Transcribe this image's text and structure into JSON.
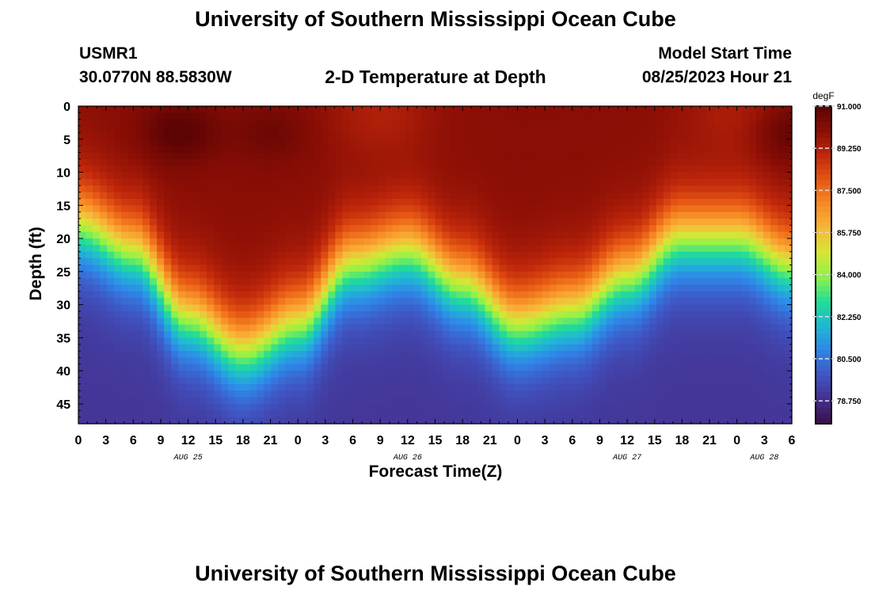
{
  "header": {
    "title": "University of Southern Mississippi Ocean Cube",
    "station": "USMR1",
    "coords": "30.0770N  88.5830W",
    "subtitle": "2-D Temperature at Depth",
    "model_start_label": "Model Start Time",
    "model_start_value": "08/25/2023 Hour 21",
    "footer_title": "University of Southern Mississippi Ocean Cube"
  },
  "chart_data": {
    "type": "heatmap",
    "title": "2-D Temperature at Depth",
    "xlabel": "Forecast Time(Z)",
    "ylabel": "Depth (ft)",
    "x_tick_labels": [
      "0",
      "3",
      "6",
      "9",
      "12",
      "15",
      "18",
      "21",
      "0",
      "3",
      "6",
      "9",
      "12",
      "15",
      "18",
      "21",
      "0",
      "3",
      "6",
      "9",
      "12",
      "15",
      "18",
      "21",
      "0",
      "3",
      "6"
    ],
    "day_labels": [
      {
        "label": "AUG 25",
        "tick_index": 4
      },
      {
        "label": "AUG 26",
        "tick_index": 12
      },
      {
        "label": "AUG 27",
        "tick_index": 20
      },
      {
        "label": "AUG 28",
        "tick_index": 25
      }
    ],
    "y_ticks": [
      0,
      5,
      10,
      15,
      20,
      25,
      30,
      35,
      40,
      45
    ],
    "y_range": [
      0,
      48
    ],
    "x_range_hours": [
      0,
      78
    ],
    "colorbar": {
      "units": "degF",
      "min": 77.8,
      "max": 91.0,
      "ticks": [
        "91.000",
        "89.250",
        "87.500",
        "85.750",
        "84.000",
        "82.250",
        "80.500",
        "78.750"
      ],
      "colors": [
        "#3b0f4a",
        "#452f8e",
        "#3f56c4",
        "#2f86e8",
        "#1fb8d4",
        "#22dd96",
        "#8ff249",
        "#d6e634",
        "#f8b73a",
        "#f78a24",
        "#e55613",
        "#c0270b",
        "#8a0e05",
        "#5c0404"
      ]
    },
    "model": {
      "surface_temp_degF": 90.0,
      "bottom_temp_degF": 79.0,
      "thermocline_depth_ft": [
        [
          0,
          18
        ],
        [
          6,
          22
        ],
        [
          12,
          32
        ],
        [
          18,
          37
        ],
        [
          24,
          33
        ],
        [
          30,
          24
        ],
        [
          36,
          22
        ],
        [
          42,
          27
        ],
        [
          48,
          33
        ],
        [
          54,
          31
        ],
        [
          60,
          26
        ],
        [
          66,
          20
        ],
        [
          72,
          20
        ],
        [
          78,
          24
        ]
      ],
      "hot_spots": [
        {
          "hour": 11,
          "depth_ft": 4,
          "boost_degF": 1.1
        },
        {
          "hour": 21,
          "depth_ft": 4,
          "boost_degF": 0.6
        },
        {
          "hour": 78,
          "depth_ft": 4,
          "boost_degF": 1.0
        }
      ],
      "cool_surface_spots": [
        {
          "hour": 33,
          "depth_ft": 1,
          "drop_degF": 0.7
        },
        {
          "hour": 72,
          "depth_ft": 1,
          "drop_degF": 0.6
        }
      ]
    }
  }
}
